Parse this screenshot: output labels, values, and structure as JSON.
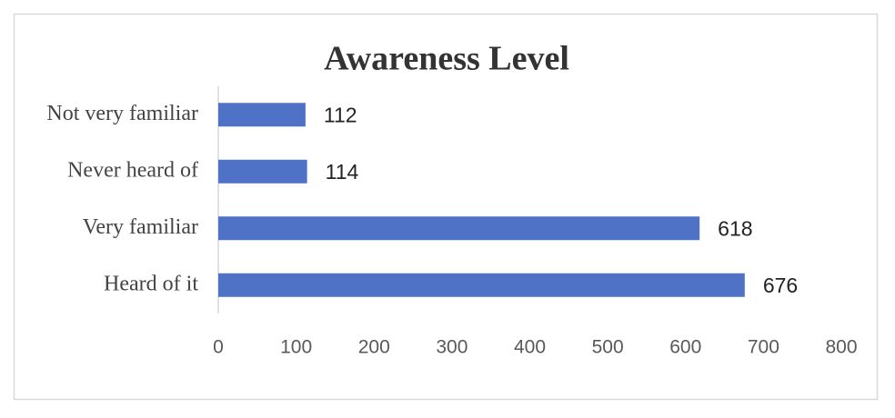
{
  "chart_data": {
    "type": "bar",
    "orientation": "horizontal",
    "title": "Awareness Level",
    "categories": [
      "Not very familiar",
      "Never heard of",
      "Very familiar",
      "Heard of it"
    ],
    "values": [
      112,
      114,
      618,
      676
    ],
    "color": "#4f72c6",
    "xlim": [
      0,
      800
    ],
    "xticks": [
      0,
      100,
      200,
      300,
      400,
      500,
      600,
      700,
      800
    ],
    "grid": false
  }
}
